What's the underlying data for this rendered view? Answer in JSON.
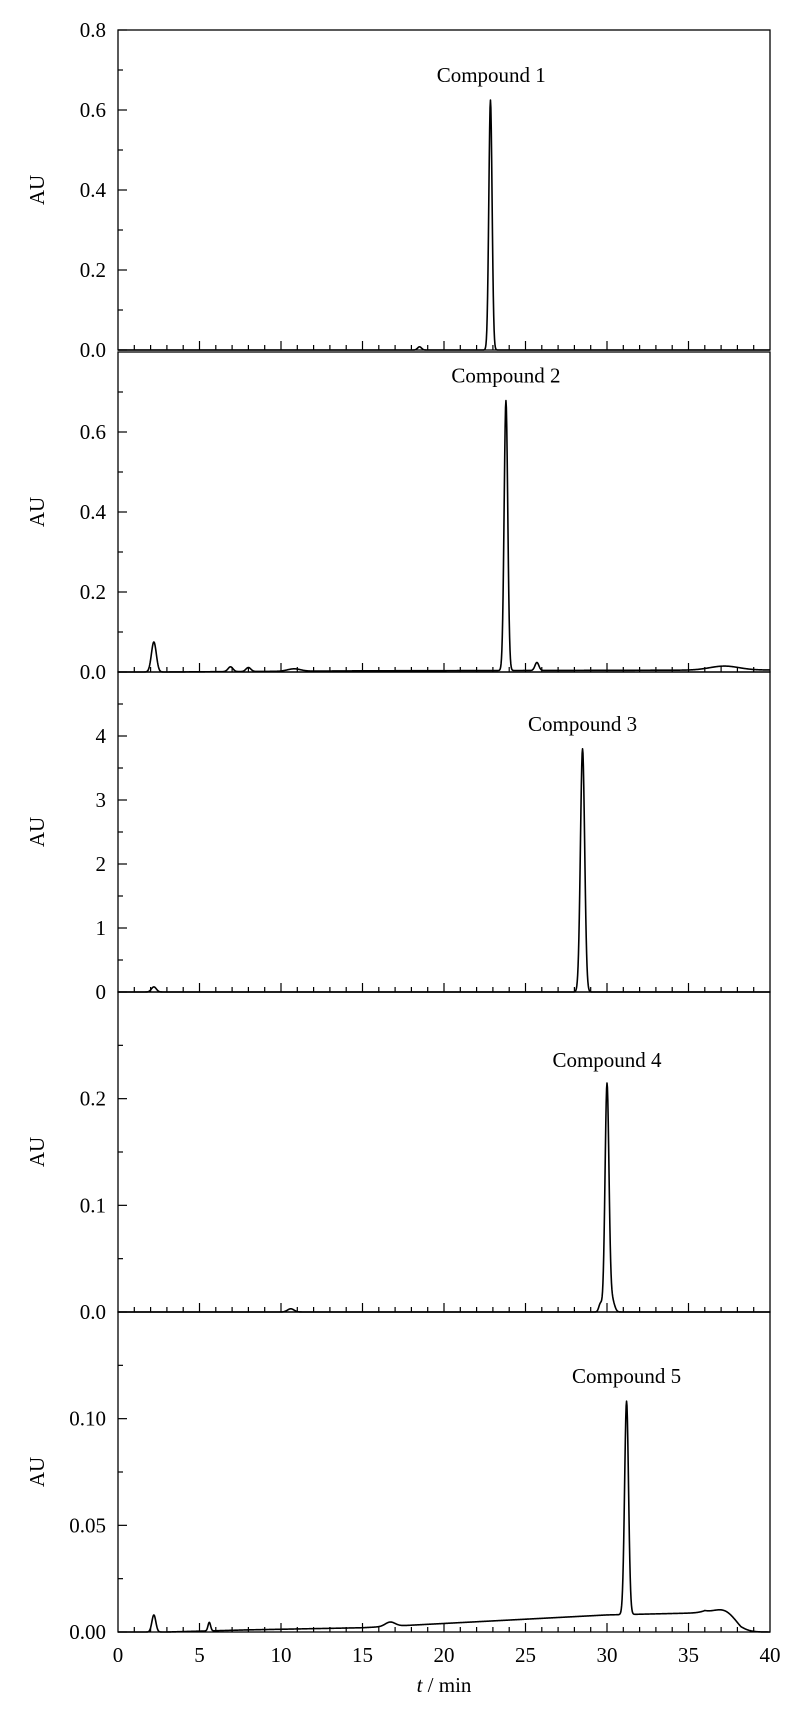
{
  "chart_data": [
    {
      "type": "line",
      "panel": 1,
      "ylabel": "AU",
      "xlim": [
        0,
        40
      ],
      "ylim": [
        0,
        0.8
      ],
      "yticks": [
        0.0,
        0.2,
        0.4,
        0.6,
        0.8
      ],
      "ytick_labels": [
        "0.0",
        "0.2",
        "0.4",
        "0.6",
        "0.8"
      ],
      "annotation": {
        "text": "Compound 1",
        "x": 22.9
      },
      "peaks": [
        {
          "x": 18.5,
          "y": 0.008,
          "w": 0.12
        },
        {
          "x": 22.85,
          "y": 0.625,
          "w": 0.1
        }
      ],
      "baseline": [
        [
          0,
          0.0
        ],
        [
          40,
          0.0
        ]
      ]
    },
    {
      "type": "line",
      "panel": 2,
      "ylabel": "AU",
      "xlim": [
        0,
        40
      ],
      "ylim": [
        0,
        0.8
      ],
      "yticks": [
        0.0,
        0.2,
        0.4,
        0.6
      ],
      "ytick_labels": [
        "0.0",
        "0.2",
        "0.4",
        "0.6"
      ],
      "annotation": {
        "text": "Compound 2",
        "x": 23.8
      },
      "peaks": [
        {
          "x": 2.2,
          "y": 0.075,
          "w": 0.15
        },
        {
          "x": 6.9,
          "y": 0.012,
          "w": 0.15
        },
        {
          "x": 8.0,
          "y": 0.01,
          "w": 0.15
        },
        {
          "x": 10.8,
          "y": 0.006,
          "w": 0.4
        },
        {
          "x": 23.8,
          "y": 0.675,
          "w": 0.11
        },
        {
          "x": 25.7,
          "y": 0.02,
          "w": 0.12
        },
        {
          "x": 37.2,
          "y": 0.01,
          "w": 0.9
        }
      ],
      "baseline": [
        [
          0,
          0.0
        ],
        [
          3,
          0.0
        ],
        [
          15,
          0.003
        ],
        [
          40,
          0.005
        ]
      ]
    },
    {
      "type": "line",
      "panel": 3,
      "ylabel": "AU",
      "xlim": [
        0,
        40
      ],
      "ylim": [
        0,
        5
      ],
      "yticks": [
        0,
        1,
        2,
        3,
        4
      ],
      "ytick_labels": [
        "0",
        "1",
        "2",
        "3",
        "4"
      ],
      "annotation": {
        "text": "Compound 3",
        "x": 28.5
      },
      "peaks": [
        {
          "x": 2.2,
          "y": 0.08,
          "w": 0.15
        },
        {
          "x": 28.5,
          "y": 3.8,
          "w": 0.13
        }
      ],
      "baseline": [
        [
          0,
          0.0
        ],
        [
          40,
          0.0
        ]
      ]
    },
    {
      "type": "line",
      "panel": 4,
      "ylabel": "AU",
      "xlim": [
        0,
        40
      ],
      "ylim": [
        0,
        0.3
      ],
      "yticks": [
        0.0,
        0.1,
        0.2
      ],
      "ytick_labels": [
        "0.0",
        "0.1",
        "0.2"
      ],
      "annotation": {
        "text": "Compound 4",
        "x": 30.0
      },
      "peaks": [
        {
          "x": 10.6,
          "y": 0.003,
          "w": 0.2
        },
        {
          "x": 29.6,
          "y": 0.008,
          "w": 0.1
        },
        {
          "x": 30.0,
          "y": 0.213,
          "w": 0.12
        },
        {
          "x": 30.3,
          "y": 0.012,
          "w": 0.15
        }
      ],
      "baseline": [
        [
          0,
          0.0
        ],
        [
          40,
          0.0
        ]
      ]
    },
    {
      "type": "line",
      "panel": 5,
      "ylabel": "AU",
      "xlabel": "t / min",
      "xlim": [
        0,
        40
      ],
      "ylim": [
        0,
        0.15
      ],
      "yticks": [
        0.0,
        0.05,
        0.1
      ],
      "ytick_labels": [
        "0.00",
        "0.05",
        "0.10"
      ],
      "xticks": [
        0,
        5,
        10,
        15,
        20,
        25,
        30,
        35,
        40
      ],
      "xtick_labels": [
        "0",
        "5",
        "10",
        "15",
        "20",
        "25",
        "30",
        "35",
        "40"
      ],
      "annotation": {
        "text": "Compound 5",
        "x": 31.2
      },
      "peaks": [
        {
          "x": 2.2,
          "y": 0.008,
          "w": 0.12
        },
        {
          "x": 5.6,
          "y": 0.004,
          "w": 0.08
        },
        {
          "x": 16.7,
          "y": 0.002,
          "w": 0.3
        },
        {
          "x": 31.2,
          "y": 0.1,
          "w": 0.12
        },
        {
          "x": 37.3,
          "y": 0.006,
          "w": 0.7
        }
      ],
      "baseline": [
        [
          0,
          0.0
        ],
        [
          3,
          0.0
        ],
        [
          8,
          0.001
        ],
        [
          15,
          0.002
        ],
        [
          20,
          0.004
        ],
        [
          25,
          0.006
        ],
        [
          30,
          0.008
        ],
        [
          36,
          0.009
        ],
        [
          38.2,
          0.0
        ],
        [
          40,
          0.0
        ]
      ]
    }
  ]
}
